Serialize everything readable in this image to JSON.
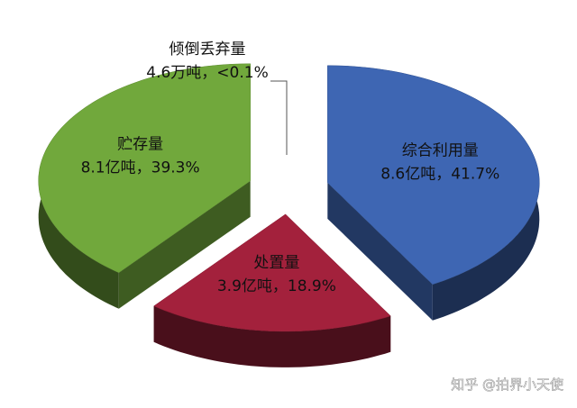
{
  "chart_data": {
    "type": "pie3d",
    "categories": [
      "综合利用量",
      "处置量",
      "贮存量",
      "倾倒丢弃量"
    ],
    "amount_labels": [
      "8.6亿吨，",
      "3.9亿吨，",
      "8.1亿吨，",
      "4.6万吨，"
    ],
    "values": [
      41.7,
      18.9,
      39.3,
      0.002
    ],
    "value_labels": [
      "41.7%",
      "18.9%",
      "39.3%",
      "<0.1%"
    ],
    "colors": [
      "#3e66b3",
      "#a3213c",
      "#71a83c",
      "#bbbbbb"
    ],
    "watermark": "知乎 @拍界小天使"
  }
}
